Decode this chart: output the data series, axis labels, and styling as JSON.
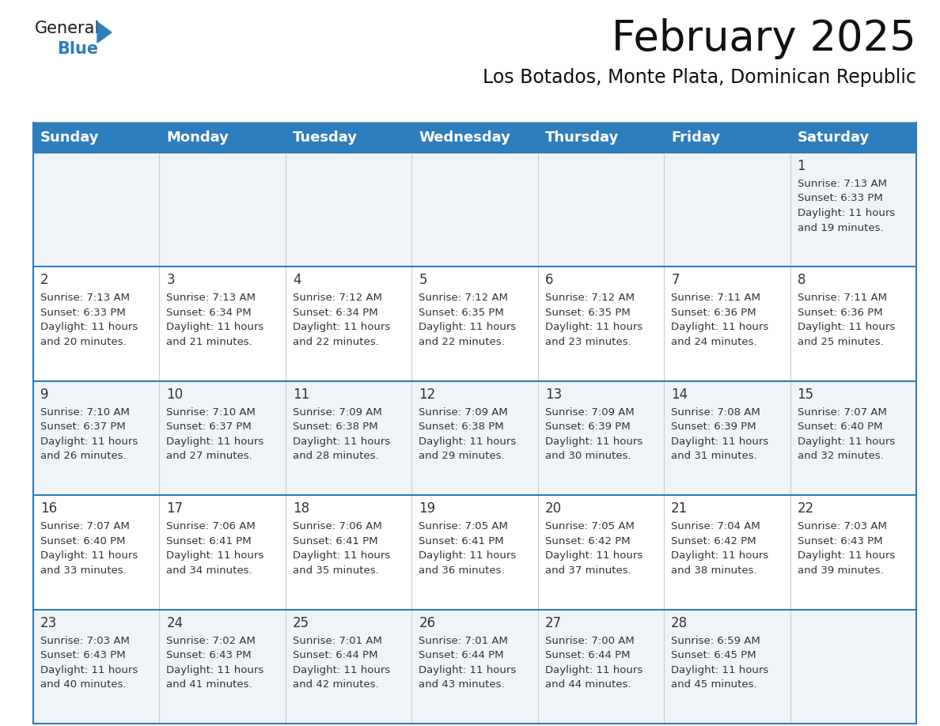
{
  "title": "February 2025",
  "subtitle": "Los Botados, Monte Plata, Dominican Republic",
  "header_bg": "#2E7DBD",
  "header_text_color": "#FFFFFF",
  "cell_bg_alt": "#F0F4F8",
  "cell_bg_white": "#FFFFFF",
  "cell_line_color": "#2E7DBD",
  "day_number_color": "#333333",
  "detail_text_color": "#333333",
  "days_of_week": [
    "Sunday",
    "Monday",
    "Tuesday",
    "Wednesday",
    "Thursday",
    "Friday",
    "Saturday"
  ],
  "weeks": [
    [
      {
        "day": "",
        "sunrise": "",
        "sunset": "",
        "daylight_l1": "",
        "daylight_l2": ""
      },
      {
        "day": "",
        "sunrise": "",
        "sunset": "",
        "daylight_l1": "",
        "daylight_l2": ""
      },
      {
        "day": "",
        "sunrise": "",
        "sunset": "",
        "daylight_l1": "",
        "daylight_l2": ""
      },
      {
        "day": "",
        "sunrise": "",
        "sunset": "",
        "daylight_l1": "",
        "daylight_l2": ""
      },
      {
        "day": "",
        "sunrise": "",
        "sunset": "",
        "daylight_l1": "",
        "daylight_l2": ""
      },
      {
        "day": "",
        "sunrise": "",
        "sunset": "",
        "daylight_l1": "",
        "daylight_l2": ""
      },
      {
        "day": "1",
        "sunrise": "Sunrise: 7:13 AM",
        "sunset": "Sunset: 6:33 PM",
        "daylight_l1": "Daylight: 11 hours",
        "daylight_l2": "and 19 minutes."
      }
    ],
    [
      {
        "day": "2",
        "sunrise": "Sunrise: 7:13 AM",
        "sunset": "Sunset: 6:33 PM",
        "daylight_l1": "Daylight: 11 hours",
        "daylight_l2": "and 20 minutes."
      },
      {
        "day": "3",
        "sunrise": "Sunrise: 7:13 AM",
        "sunset": "Sunset: 6:34 PM",
        "daylight_l1": "Daylight: 11 hours",
        "daylight_l2": "and 21 minutes."
      },
      {
        "day": "4",
        "sunrise": "Sunrise: 7:12 AM",
        "sunset": "Sunset: 6:34 PM",
        "daylight_l1": "Daylight: 11 hours",
        "daylight_l2": "and 22 minutes."
      },
      {
        "day": "5",
        "sunrise": "Sunrise: 7:12 AM",
        "sunset": "Sunset: 6:35 PM",
        "daylight_l1": "Daylight: 11 hours",
        "daylight_l2": "and 22 minutes."
      },
      {
        "day": "6",
        "sunrise": "Sunrise: 7:12 AM",
        "sunset": "Sunset: 6:35 PM",
        "daylight_l1": "Daylight: 11 hours",
        "daylight_l2": "and 23 minutes."
      },
      {
        "day": "7",
        "sunrise": "Sunrise: 7:11 AM",
        "sunset": "Sunset: 6:36 PM",
        "daylight_l1": "Daylight: 11 hours",
        "daylight_l2": "and 24 minutes."
      },
      {
        "day": "8",
        "sunrise": "Sunrise: 7:11 AM",
        "sunset": "Sunset: 6:36 PM",
        "daylight_l1": "Daylight: 11 hours",
        "daylight_l2": "and 25 minutes."
      }
    ],
    [
      {
        "day": "9",
        "sunrise": "Sunrise: 7:10 AM",
        "sunset": "Sunset: 6:37 PM",
        "daylight_l1": "Daylight: 11 hours",
        "daylight_l2": "and 26 minutes."
      },
      {
        "day": "10",
        "sunrise": "Sunrise: 7:10 AM",
        "sunset": "Sunset: 6:37 PM",
        "daylight_l1": "Daylight: 11 hours",
        "daylight_l2": "and 27 minutes."
      },
      {
        "day": "11",
        "sunrise": "Sunrise: 7:09 AM",
        "sunset": "Sunset: 6:38 PM",
        "daylight_l1": "Daylight: 11 hours",
        "daylight_l2": "and 28 minutes."
      },
      {
        "day": "12",
        "sunrise": "Sunrise: 7:09 AM",
        "sunset": "Sunset: 6:38 PM",
        "daylight_l1": "Daylight: 11 hours",
        "daylight_l2": "and 29 minutes."
      },
      {
        "day": "13",
        "sunrise": "Sunrise: 7:09 AM",
        "sunset": "Sunset: 6:39 PM",
        "daylight_l1": "Daylight: 11 hours",
        "daylight_l2": "and 30 minutes."
      },
      {
        "day": "14",
        "sunrise": "Sunrise: 7:08 AM",
        "sunset": "Sunset: 6:39 PM",
        "daylight_l1": "Daylight: 11 hours",
        "daylight_l2": "and 31 minutes."
      },
      {
        "day": "15",
        "sunrise": "Sunrise: 7:07 AM",
        "sunset": "Sunset: 6:40 PM",
        "daylight_l1": "Daylight: 11 hours",
        "daylight_l2": "and 32 minutes."
      }
    ],
    [
      {
        "day": "16",
        "sunrise": "Sunrise: 7:07 AM",
        "sunset": "Sunset: 6:40 PM",
        "daylight_l1": "Daylight: 11 hours",
        "daylight_l2": "and 33 minutes."
      },
      {
        "day": "17",
        "sunrise": "Sunrise: 7:06 AM",
        "sunset": "Sunset: 6:41 PM",
        "daylight_l1": "Daylight: 11 hours",
        "daylight_l2": "and 34 minutes."
      },
      {
        "day": "18",
        "sunrise": "Sunrise: 7:06 AM",
        "sunset": "Sunset: 6:41 PM",
        "daylight_l1": "Daylight: 11 hours",
        "daylight_l2": "and 35 minutes."
      },
      {
        "day": "19",
        "sunrise": "Sunrise: 7:05 AM",
        "sunset": "Sunset: 6:41 PM",
        "daylight_l1": "Daylight: 11 hours",
        "daylight_l2": "and 36 minutes."
      },
      {
        "day": "20",
        "sunrise": "Sunrise: 7:05 AM",
        "sunset": "Sunset: 6:42 PM",
        "daylight_l1": "Daylight: 11 hours",
        "daylight_l2": "and 37 minutes."
      },
      {
        "day": "21",
        "sunrise": "Sunrise: 7:04 AM",
        "sunset": "Sunset: 6:42 PM",
        "daylight_l1": "Daylight: 11 hours",
        "daylight_l2": "and 38 minutes."
      },
      {
        "day": "22",
        "sunrise": "Sunrise: 7:03 AM",
        "sunset": "Sunset: 6:43 PM",
        "daylight_l1": "Daylight: 11 hours",
        "daylight_l2": "and 39 minutes."
      }
    ],
    [
      {
        "day": "23",
        "sunrise": "Sunrise: 7:03 AM",
        "sunset": "Sunset: 6:43 PM",
        "daylight_l1": "Daylight: 11 hours",
        "daylight_l2": "and 40 minutes."
      },
      {
        "day": "24",
        "sunrise": "Sunrise: 7:02 AM",
        "sunset": "Sunset: 6:43 PM",
        "daylight_l1": "Daylight: 11 hours",
        "daylight_l2": "and 41 minutes."
      },
      {
        "day": "25",
        "sunrise": "Sunrise: 7:01 AM",
        "sunset": "Sunset: 6:44 PM",
        "daylight_l1": "Daylight: 11 hours",
        "daylight_l2": "and 42 minutes."
      },
      {
        "day": "26",
        "sunrise": "Sunrise: 7:01 AM",
        "sunset": "Sunset: 6:44 PM",
        "daylight_l1": "Daylight: 11 hours",
        "daylight_l2": "and 43 minutes."
      },
      {
        "day": "27",
        "sunrise": "Sunrise: 7:00 AM",
        "sunset": "Sunset: 6:44 PM",
        "daylight_l1": "Daylight: 11 hours",
        "daylight_l2": "and 44 minutes."
      },
      {
        "day": "28",
        "sunrise": "Sunrise: 6:59 AM",
        "sunset": "Sunset: 6:45 PM",
        "daylight_l1": "Daylight: 11 hours",
        "daylight_l2": "and 45 minutes."
      },
      {
        "day": "",
        "sunrise": "",
        "sunset": "",
        "daylight_l1": "",
        "daylight_l2": ""
      }
    ]
  ],
  "logo_color_general": "#1a1a1a",
  "logo_color_blue": "#2E7DBD",
  "logo_triangle_color": "#2E7DBD"
}
